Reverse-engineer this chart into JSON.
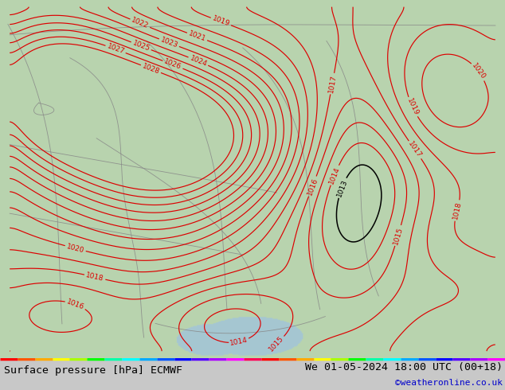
{
  "title_left": "Surface pressure [hPa] ECMWF",
  "title_right": "We 01-05-2024 18:00 UTC (00+18)",
  "credit": "©weatheronline.co.uk",
  "bg_color": "#c8c8c8",
  "map_bg_color": "#b8d4b0",
  "fig_width": 6.34,
  "fig_height": 4.9,
  "bottom_bar_color": "#f0f0f0",
  "contour_color_red": "#dd0000",
  "contour_color_black": "#000000",
  "contour_color_blue": "#0000bb",
  "land_color": "#b8d4b0",
  "border_color": "#909090",
  "rainbow_colors": [
    "#ff0000",
    "#ff5500",
    "#ffaa00",
    "#ffff00",
    "#aaff00",
    "#00ff00",
    "#00ffaa",
    "#00ffff",
    "#00aaff",
    "#0055ff",
    "#0000ff",
    "#5500ff",
    "#aa00ff",
    "#ff00ff",
    "#ff0055",
    "#ff0000",
    "#ff5500",
    "#ffaa00",
    "#ffff00",
    "#aaff00",
    "#00ff00",
    "#00ffaa",
    "#00ffff",
    "#00aaff",
    "#0055ff",
    "#0000ff",
    "#5500ff",
    "#aa00ff",
    "#ff00ff"
  ]
}
